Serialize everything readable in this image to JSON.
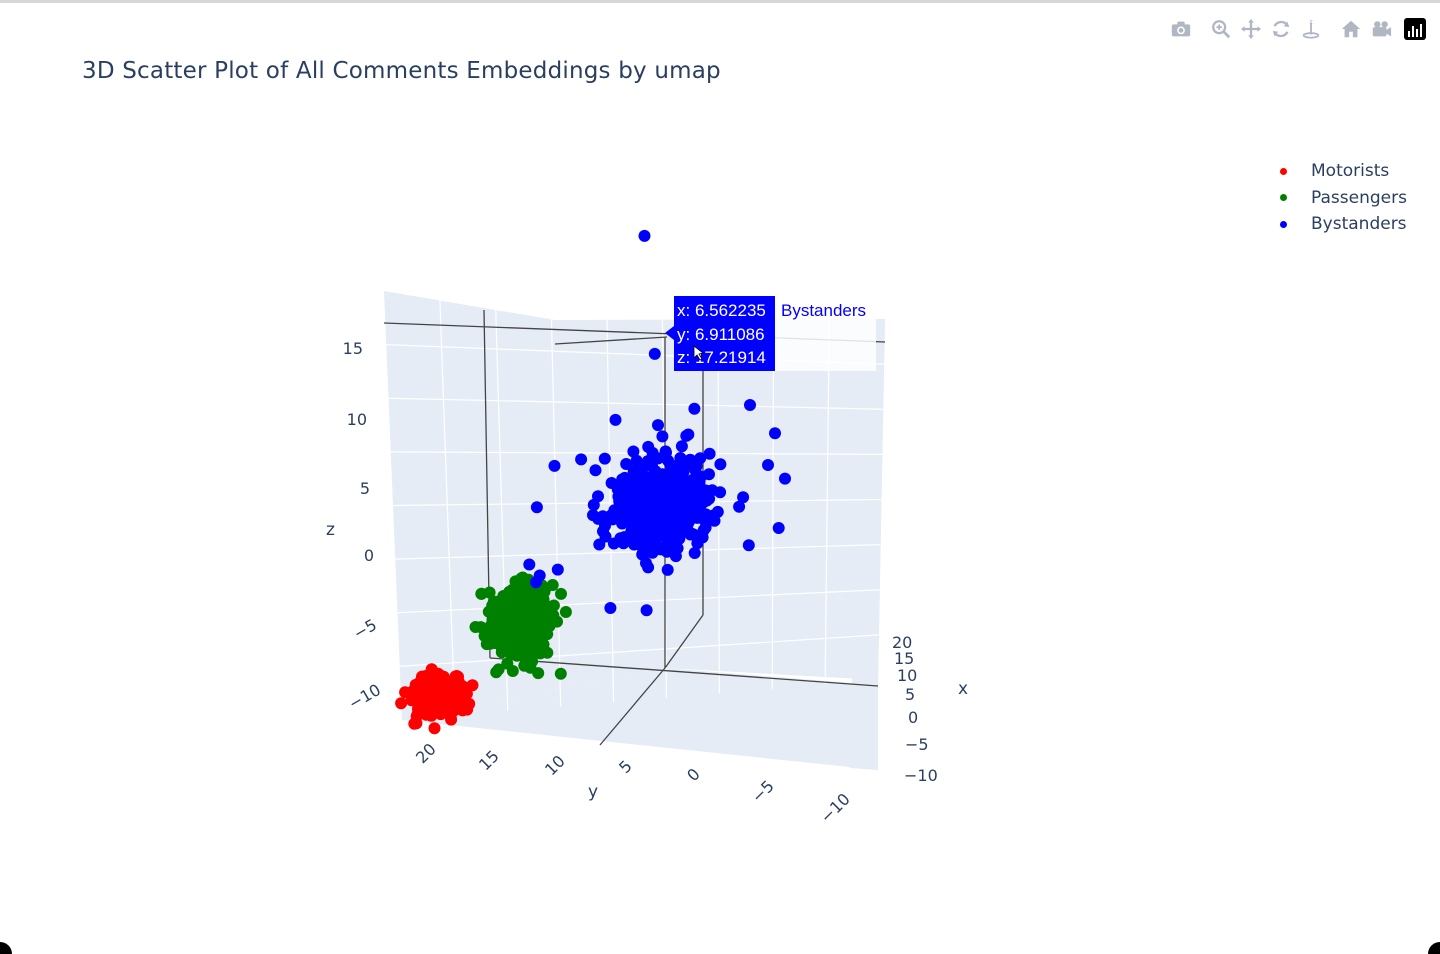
{
  "title": "3D Scatter Plot of All Comments Embeddings by umap",
  "modebar": {
    "buttons": [
      "camera-icon",
      "zoom-icon",
      "pan-icon",
      "orbit-icon",
      "turntable-icon",
      "home-icon",
      "camera-view-icon",
      "plotly-logo-icon"
    ]
  },
  "legend": [
    {
      "name": "Motorists",
      "color": "#ff0000"
    },
    {
      "name": "Passengers",
      "color": "#008000"
    },
    {
      "name": "Bystanders",
      "color": "#0000ff"
    }
  ],
  "hover": {
    "x_text": "x: 6.562235",
    "y_text": "y: 6.911086",
    "z_text": "z: 17.21914",
    "trace_name": "Bystanders",
    "bg_color": "#0000ff"
  },
  "chart_data": {
    "type": "scatter",
    "projection": "3d",
    "title": "3D Scatter Plot of All Comments Embeddings by umap",
    "axes": {
      "x": {
        "label": "x",
        "ticks": [
          "−10",
          "−5",
          "0",
          "5",
          "10",
          "15",
          "20"
        ],
        "range": [
          -12,
          22
        ]
      },
      "y": {
        "label": "y",
        "ticks": [
          "−10",
          "−5",
          "0",
          "5",
          "10",
          "15",
          "20"
        ],
        "range": [
          -12,
          22
        ]
      },
      "z": {
        "label": "z",
        "ticks": [
          "−10",
          "−5",
          "0",
          "5",
          "10",
          "15"
        ],
        "range": [
          -12,
          18
        ]
      }
    },
    "grid": true,
    "legend_position": "top-right",
    "series": [
      {
        "name": "Motorists",
        "color": "#ff0000",
        "cluster_center": [
          -4,
          18,
          -5
        ],
        "approx_points": 400
      },
      {
        "name": "Passengers",
        "color": "#008000",
        "cluster_center": [
          -2,
          12,
          -1
        ],
        "approx_points": 400
      },
      {
        "name": "Bystanders",
        "color": "#0000ff",
        "cluster_center": [
          4,
          4,
          6
        ],
        "approx_points": 600
      }
    ],
    "highlighted_point": {
      "series": "Bystanders",
      "x": 6.562235,
      "y": 6.911086,
      "z": 17.21914
    }
  }
}
